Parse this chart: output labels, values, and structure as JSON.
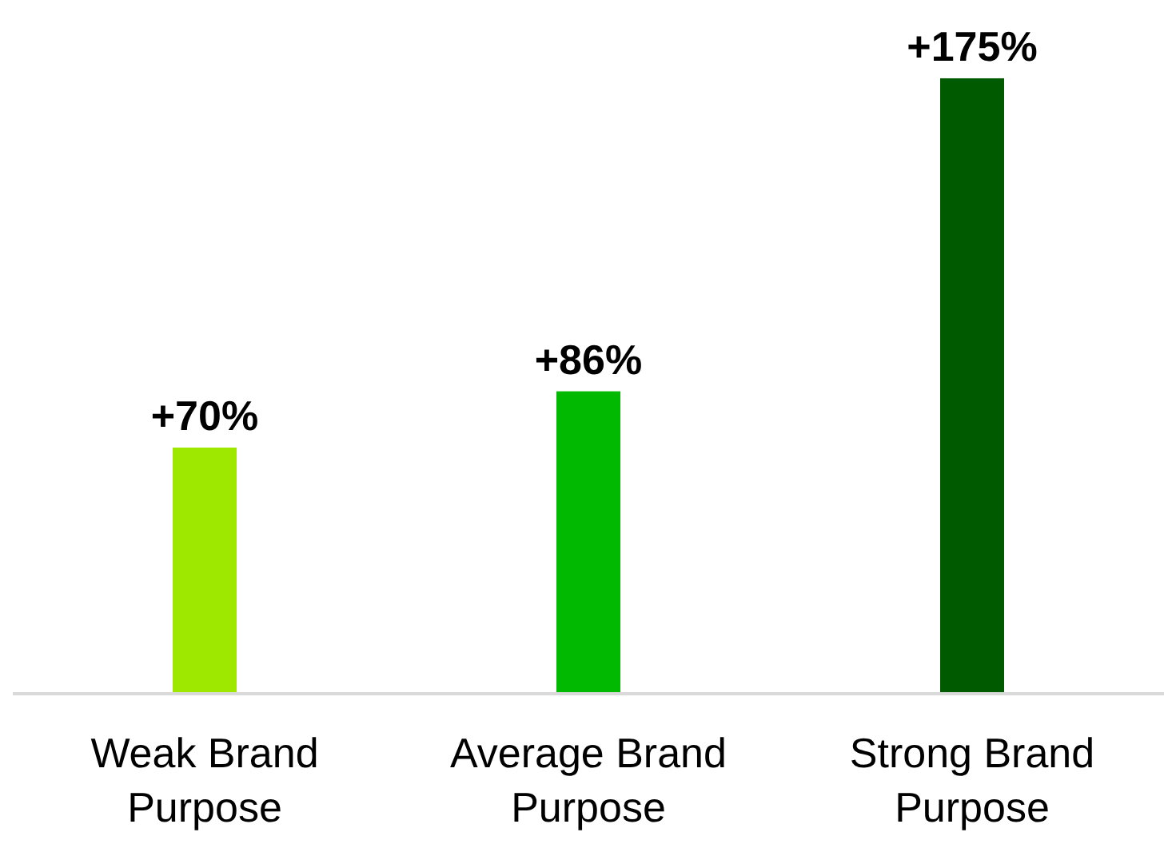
{
  "chart_data": {
    "type": "bar",
    "categories": [
      "Weak Brand Purpose",
      "Average Brand Purpose",
      "Strong Brand Purpose"
    ],
    "values": [
      70,
      86,
      175
    ],
    "colors": [
      "#9ee800",
      "#00b900",
      "#005a00"
    ],
    "value_labels": [
      "+70%",
      "+86%",
      "+175%"
    ]
  }
}
